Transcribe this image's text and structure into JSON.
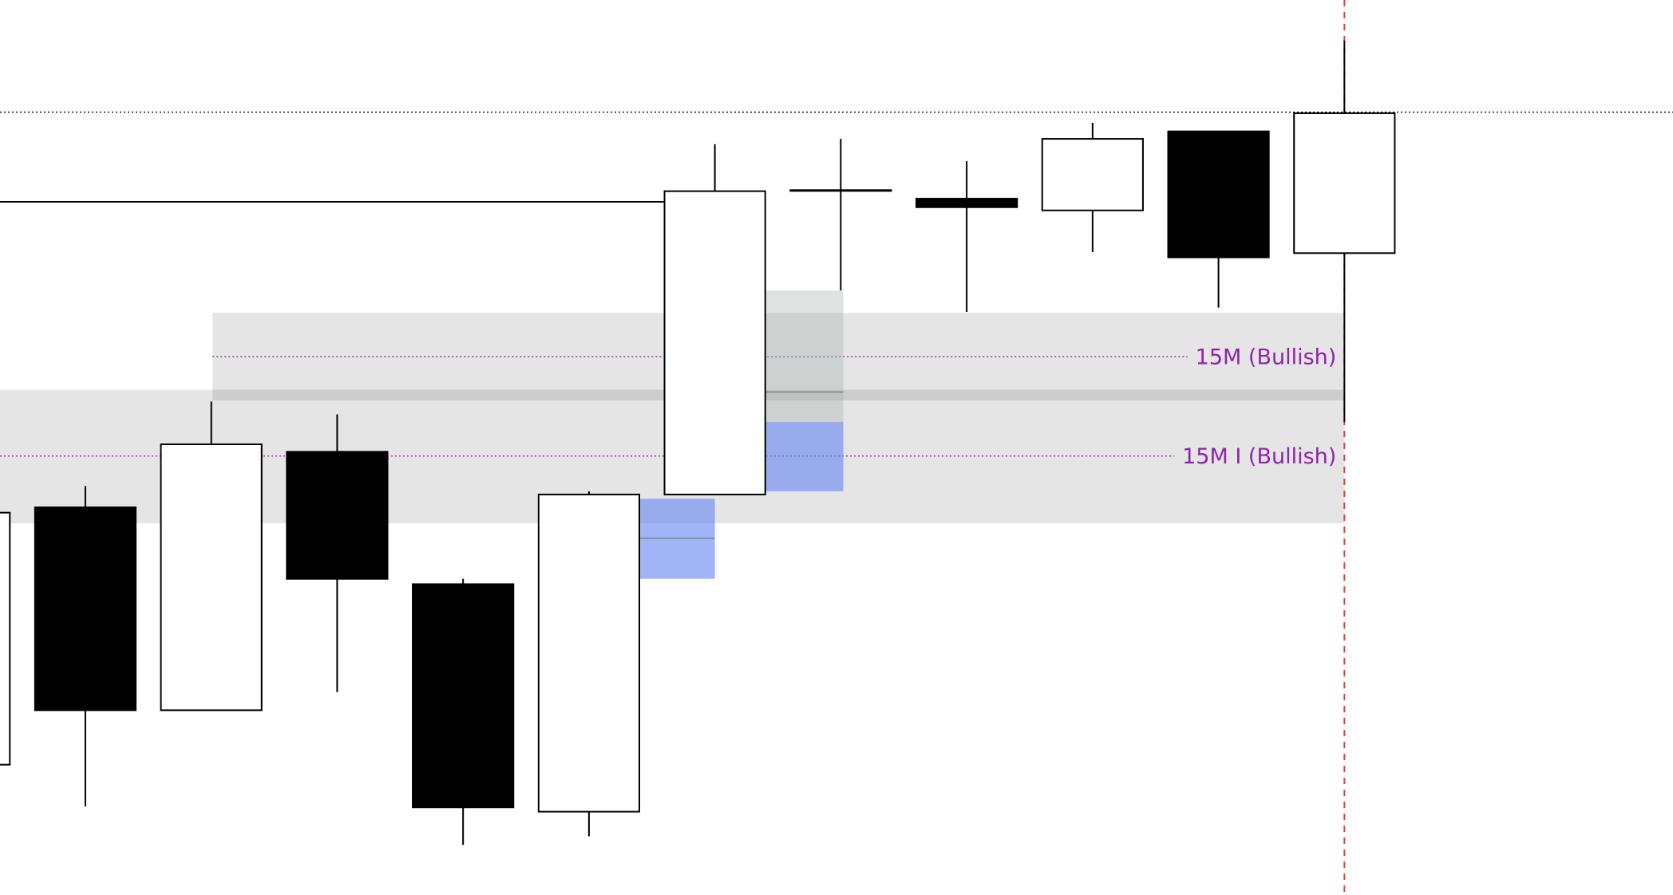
{
  "chart_data": {
    "type": "candlestick",
    "x": [
      0,
      1,
      2,
      3,
      4,
      5,
      6,
      7,
      8,
      9,
      10,
      11
    ],
    "open": [
      122,
      363,
      173,
      415,
      291,
      78,
      375,
      660,
      652,
      641,
      715,
      601
    ],
    "high": [
      358,
      383,
      462,
      450,
      296,
      378,
      703,
      708,
      687,
      723,
      715,
      800
    ],
    "low": [
      122,
      83,
      173,
      190,
      47,
      55,
      375,
      566,
      546,
      602,
      550,
      443
    ],
    "close": [
      358,
      173,
      422,
      296,
      82,
      375,
      659,
      660,
      644,
      708,
      597,
      732
    ],
    "xlim": [
      0.322,
      13.61
    ],
    "ylim": [
      0,
      838
    ],
    "up_color": "#ffffff",
    "down_color": "#000000",
    "zones": [
      {
        "label": "15M (Bullish)",
        "range": [
          463,
          545
        ],
        "mid": 504,
        "x": [
          2.01,
          11
        ],
        "color": "rgba(0,0,0,0.1)",
        "label_color": "#8e24aa"
      },
      {
        "label": "15M I (Bullish)",
        "range": [
          348,
          473
        ],
        "mid": 411,
        "x": [
          0.322,
          11
        ],
        "color": "rgba(0,0,0,0.1)",
        "label_color": "#8e24aa"
      }
    ],
    "boxes": [
      {
        "range": [
          443,
          566
        ],
        "mid": 471,
        "x": [
          6.4,
          7.02
        ],
        "color": "rgba(160,172,165,0.35)"
      },
      {
        "range": [
          378,
          443
        ],
        "x": [
          6.4,
          7.02
        ],
        "color": "rgba(110,140,240,0.65)"
      },
      {
        "range": [
          296,
          371
        ],
        "mid": 334,
        "x": [
          5.39,
          6.0
        ],
        "color": "rgba(110,140,240,0.65)"
      }
    ],
    "hlines": [
      {
        "value": 733,
        "x": [
          0.322,
          13.61
        ],
        "style": "dotted"
      },
      {
        "value": 649,
        "x": [
          0.322,
          5.61
        ],
        "style": "solid"
      }
    ],
    "vline": 11
  }
}
